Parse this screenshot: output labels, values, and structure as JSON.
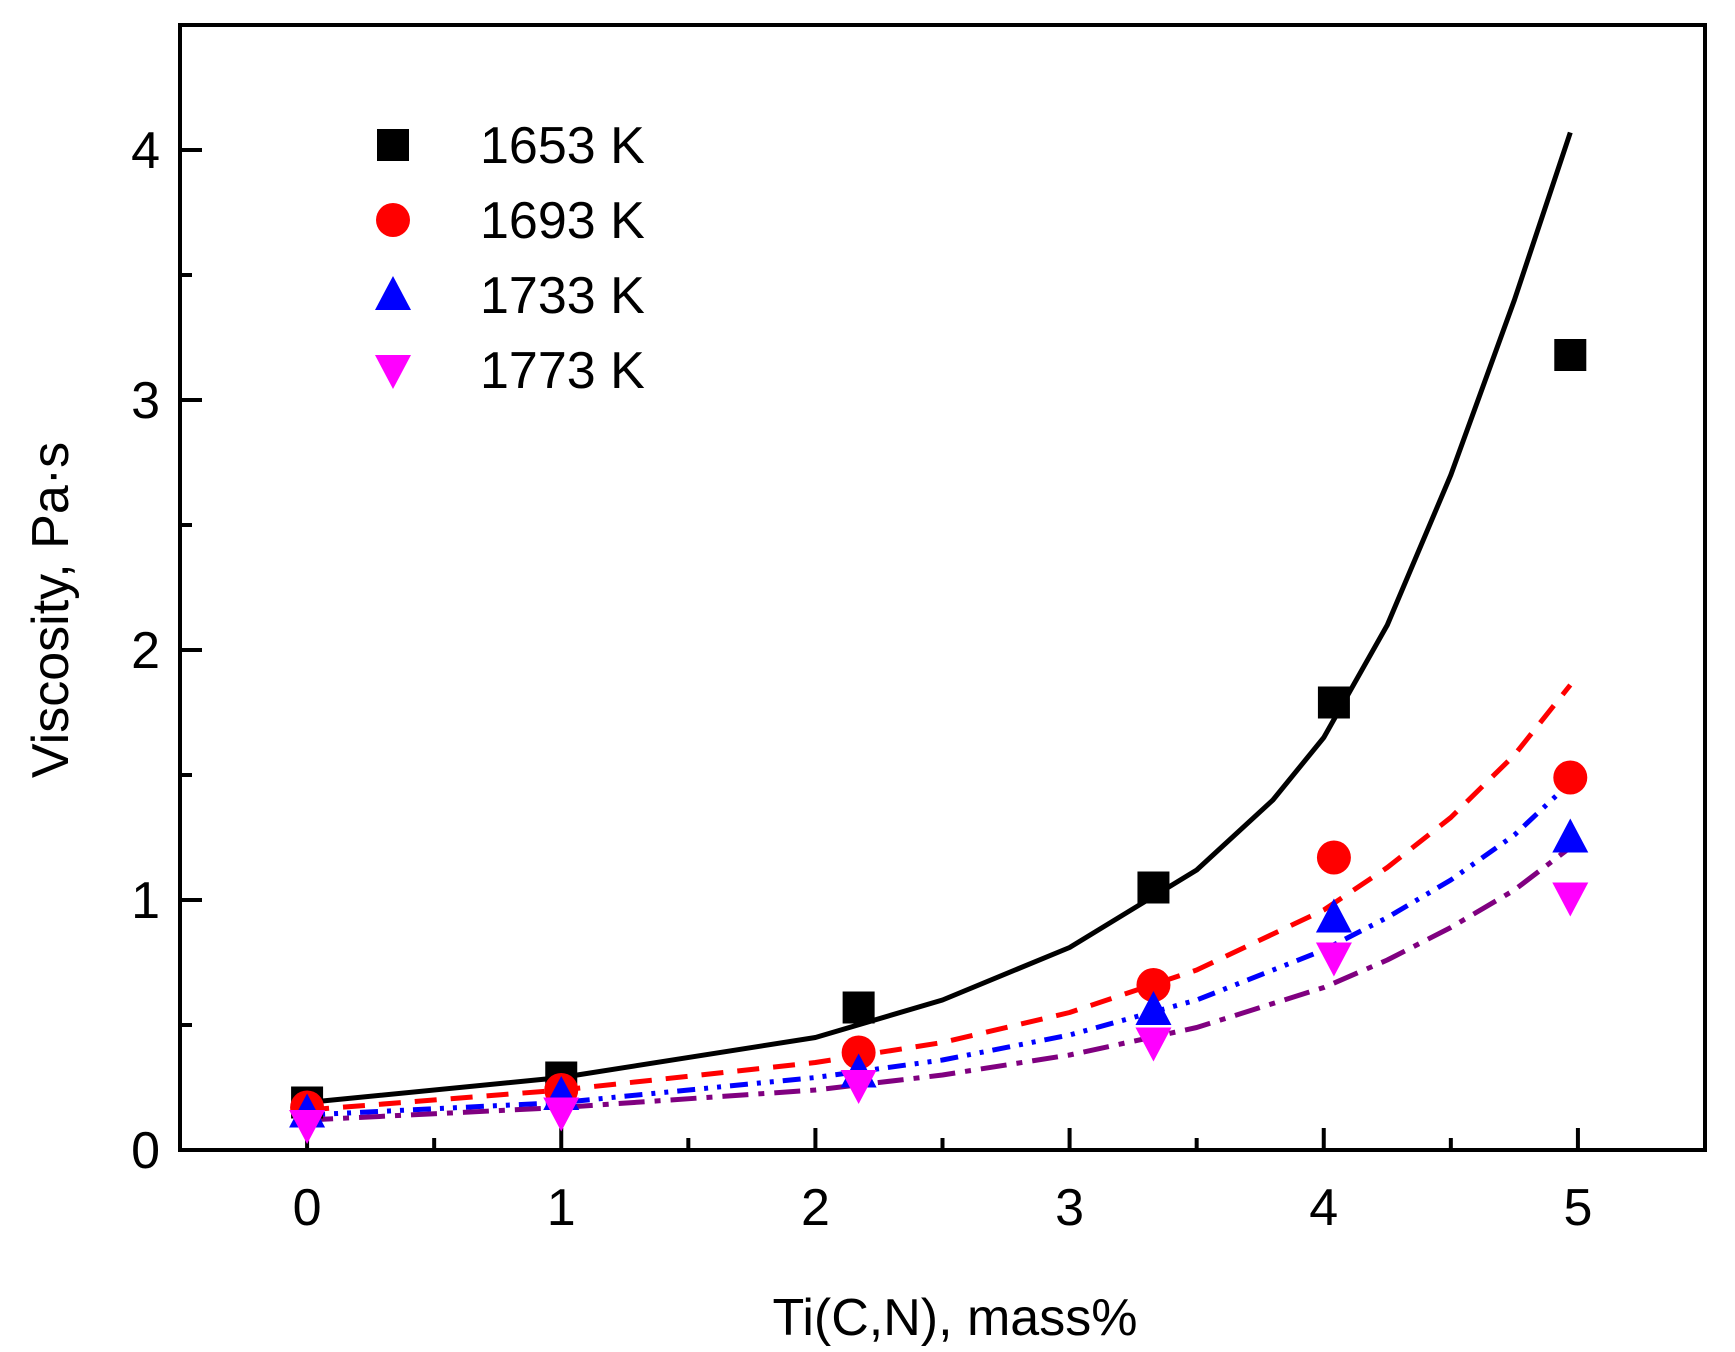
{
  "chart_data": {
    "type": "scatter",
    "title": "",
    "xlabel": "Ti(C,N), mass%",
    "ylabel": "Viscosity, Pa·s",
    "xlim": [
      -0.5,
      5.5
    ],
    "ylim": [
      0,
      4.5
    ],
    "x_ticks": [
      0,
      1,
      2,
      3,
      4,
      5
    ],
    "x_tick_labels": [
      "0",
      "1",
      "2",
      "3",
      "4",
      "5"
    ],
    "y_ticks": [
      0,
      1,
      2,
      3,
      4
    ],
    "y_tick_labels": [
      "0",
      "1",
      "2",
      "3",
      "4"
    ],
    "grid": false,
    "legend_position": "top-left",
    "series": [
      {
        "name": "1653 K",
        "marker": "square",
        "color": "#000000",
        "line_style": "solid",
        "points": [
          [
            0,
            0.19
          ],
          [
            1,
            0.29
          ],
          [
            2.17,
            0.57
          ],
          [
            3.33,
            1.05
          ],
          [
            4.04,
            1.79
          ],
          [
            4.97,
            3.18
          ]
        ],
        "fit": [
          [
            0,
            0.19
          ],
          [
            1,
            0.29
          ],
          [
            2,
            0.45
          ],
          [
            2.5,
            0.6
          ],
          [
            3,
            0.81
          ],
          [
            3.5,
            1.12
          ],
          [
            3.8,
            1.4
          ],
          [
            4,
            1.65
          ],
          [
            4.25,
            2.1
          ],
          [
            4.5,
            2.7
          ],
          [
            4.75,
            3.4
          ],
          [
            4.97,
            4.07
          ]
        ]
      },
      {
        "name": "1693 K",
        "marker": "circle",
        "color": "#ff0000",
        "line_style": "dashed",
        "points": [
          [
            0,
            0.17
          ],
          [
            1,
            0.24
          ],
          [
            2.17,
            0.39
          ],
          [
            3.33,
            0.66
          ],
          [
            4.04,
            1.17
          ],
          [
            4.97,
            1.49
          ]
        ],
        "fit": [
          [
            0,
            0.16
          ],
          [
            1,
            0.24
          ],
          [
            2,
            0.35
          ],
          [
            2.5,
            0.43
          ],
          [
            3,
            0.55
          ],
          [
            3.5,
            0.72
          ],
          [
            4,
            0.96
          ],
          [
            4.25,
            1.13
          ],
          [
            4.5,
            1.33
          ],
          [
            4.75,
            1.58
          ],
          [
            4.97,
            1.86
          ]
        ]
      },
      {
        "name": "1733 K",
        "marker": "triangle-up",
        "color": "#0000ff",
        "line_style": "dash-dot-dot",
        "points": [
          [
            0,
            0.15
          ],
          [
            1,
            0.22
          ],
          [
            2.17,
            0.31
          ],
          [
            3.33,
            0.56
          ],
          [
            4.04,
            0.93
          ],
          [
            4.97,
            1.25
          ]
        ],
        "fit": [
          [
            0,
            0.14
          ],
          [
            1,
            0.19
          ],
          [
            2,
            0.29
          ],
          [
            2.5,
            0.36
          ],
          [
            3,
            0.46
          ],
          [
            3.5,
            0.6
          ],
          [
            4,
            0.8
          ],
          [
            4.25,
            0.93
          ],
          [
            4.5,
            1.08
          ],
          [
            4.75,
            1.26
          ],
          [
            4.97,
            1.47
          ]
        ]
      },
      {
        "name": "1773 K",
        "marker": "triangle-down",
        "color": "#ff00ff",
        "fit_color": "#800080",
        "line_style": "dash-dot",
        "points": [
          [
            0,
            0.1
          ],
          [
            1,
            0.15
          ],
          [
            2.17,
            0.26
          ],
          [
            3.33,
            0.43
          ],
          [
            4.04,
            0.77
          ],
          [
            4.97,
            1.01
          ]
        ],
        "fit": [
          [
            0,
            0.12
          ],
          [
            1,
            0.17
          ],
          [
            2,
            0.24
          ],
          [
            2.5,
            0.3
          ],
          [
            3,
            0.38
          ],
          [
            3.5,
            0.49
          ],
          [
            4,
            0.65
          ],
          [
            4.25,
            0.76
          ],
          [
            4.5,
            0.89
          ],
          [
            4.75,
            1.04
          ],
          [
            4.97,
            1.21
          ]
        ]
      }
    ]
  }
}
